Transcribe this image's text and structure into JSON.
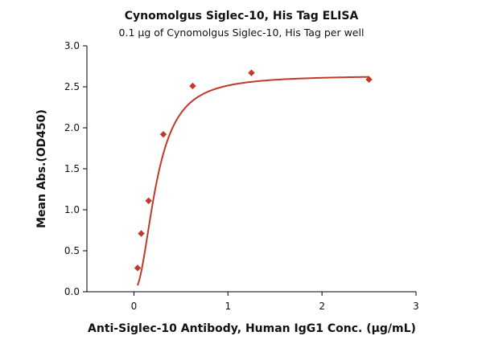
{
  "chart_data": {
    "type": "scatter",
    "title": "Cynomolgus Siglec-10, His Tag ELISA",
    "subtitle": "0.1 μg of Cynomolgus Siglec-10, His Tag per well",
    "xlabel": "Anti-Siglec-10 Antibody, Human IgG1 Conc. (μg/mL)",
    "ylabel": "Mean Abs.(OD450)",
    "xlim": [
      -0.5,
      3
    ],
    "ylim": [
      0,
      3.0
    ],
    "x_ticks": [
      0,
      1,
      2,
      3
    ],
    "x_tick_labels": [
      "0",
      "1",
      "2",
      "3"
    ],
    "y_ticks": [
      0,
      0.5,
      1.0,
      1.5,
      2.0,
      2.5,
      3.0
    ],
    "y_tick_labels": [
      "0.0",
      "0.5",
      "1.0",
      "1.5",
      "2.0",
      "2.5",
      "3.0"
    ],
    "grid": false,
    "legend": "none",
    "series": [
      {
        "x": [
          0.039,
          0.078,
          0.156,
          0.313,
          0.625,
          1.25,
          2.5
        ],
        "y": [
          0.29,
          0.71,
          1.11,
          1.92,
          2.51,
          2.67,
          2.59
        ],
        "marker": "diamond",
        "fit": "four-parameter logistic",
        "color": "#c0392b"
      }
    ]
  }
}
